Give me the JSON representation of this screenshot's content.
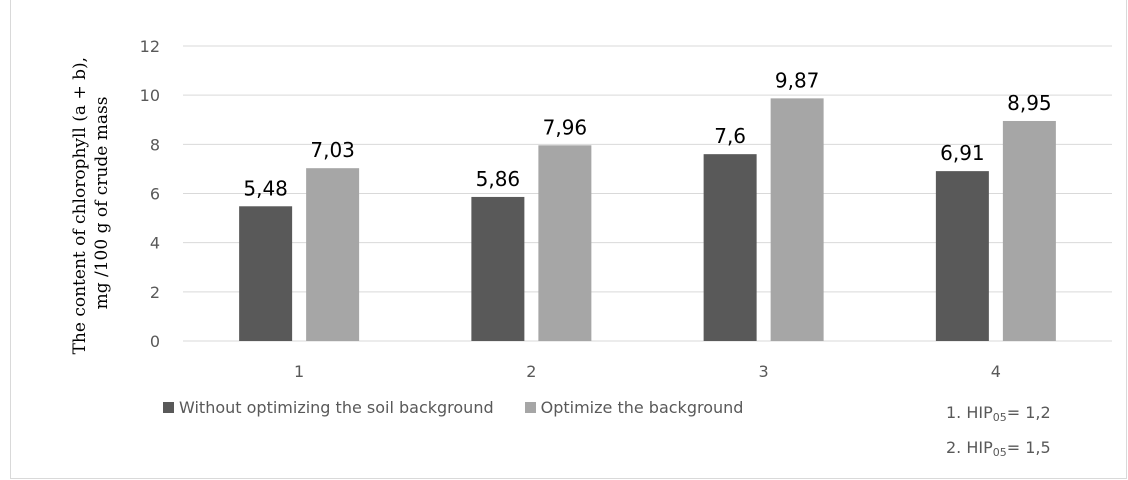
{
  "chart_data": {
    "type": "bar",
    "categories": [
      "1",
      "2",
      "3",
      "4"
    ],
    "series": [
      {
        "name": "Without optimizing the soil background",
        "values": [
          5.48,
          5.86,
          7.6,
          6.91
        ],
        "labels": [
          "5,48",
          "5,86",
          "7,6",
          "6,91"
        ],
        "color": "#595959"
      },
      {
        "name": "Optimize the background",
        "values": [
          7.03,
          7.96,
          9.87,
          8.95
        ],
        "labels": [
          "7,03",
          "7,96",
          "9,87",
          "8,95"
        ],
        "color": "#a6a6a6"
      }
    ],
    "ylabel_lines": [
      "The content of chlorophyll (a + b),",
      "mg /100 g of crude mass"
    ],
    "xlabel": "",
    "ylim": [
      0,
      12
    ],
    "yticks": [
      0,
      2,
      4,
      6,
      8,
      10,
      12
    ],
    "grid": true,
    "legend_position": "bottom"
  },
  "notes": [
    {
      "prefix": "1. HIP",
      "sub": "05",
      "suffix": "= 1,2"
    },
    {
      "prefix": "2. HIP",
      "sub": "05",
      "suffix": "= 1,5"
    }
  ]
}
